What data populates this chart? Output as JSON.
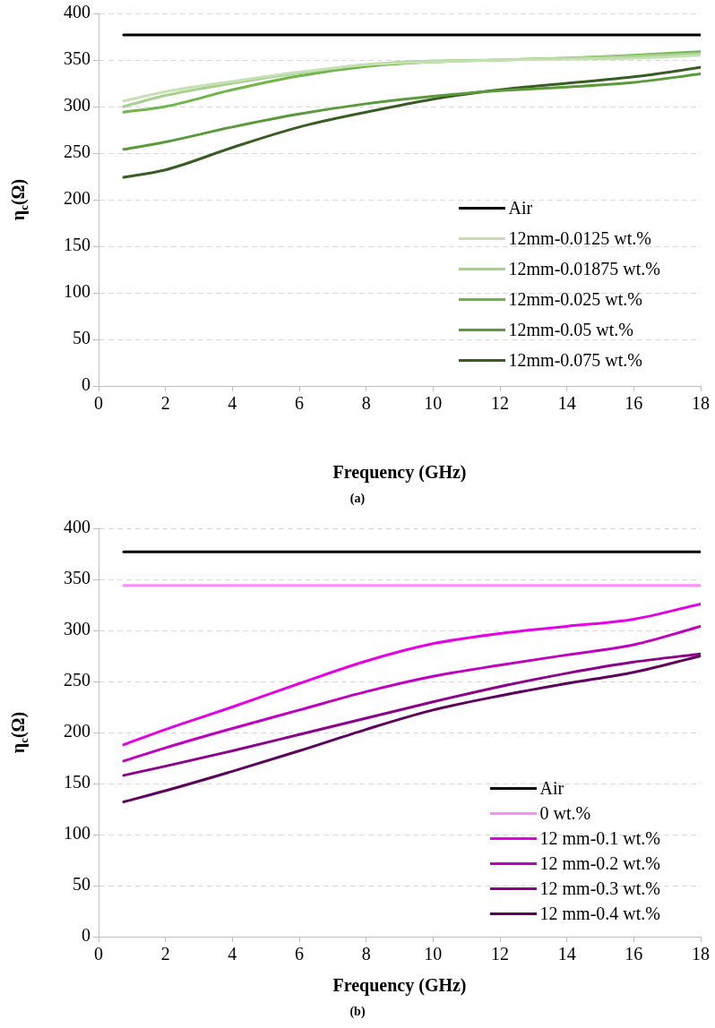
{
  "chart_data": [
    {
      "type": "line",
      "xlabel": "Frequency (GHz)",
      "ylabel": "η$_{c}$(Ω)",
      "annotations": [
        "(a)"
      ],
      "x": [
        0.75,
        2,
        4,
        6,
        8,
        10,
        12,
        14,
        16,
        18
      ],
      "xlim": [
        0,
        18
      ],
      "xticks": [
        0,
        2,
        4,
        6,
        8,
        10,
        12,
        14,
        16,
        18
      ],
      "ylim": [
        0,
        400
      ],
      "yticks": [
        0,
        50,
        100,
        150,
        200,
        250,
        300,
        350,
        400
      ],
      "grid": "y",
      "legend": "bottom right",
      "marker": "none",
      "line_style": "solid",
      "series": [
        {
          "name": "Air",
          "color": "#000000",
          "values": [
            377,
            377,
            377,
            377,
            377,
            377,
            377,
            377,
            377,
            377
          ]
        },
        {
          "name": "12mm-0.0125 wt.%",
          "color": "#c5e0b4",
          "values": [
            306,
            316,
            327,
            337,
            345,
            348,
            350,
            351,
            352,
            355
          ]
        },
        {
          "name": "12mm-0.01875 wt.%",
          "color": "#a9d18e",
          "values": [
            300,
            312,
            325,
            336,
            345,
            349,
            350,
            352,
            354,
            357
          ]
        },
        {
          "name": "12mm-0.025 wt.%",
          "color": "#70b548",
          "values": [
            294,
            300,
            318,
            333,
            343,
            348,
            350,
            352,
            355,
            359
          ]
        },
        {
          "name": "12mm-0.05 wt.%",
          "color": "#5a9a3a",
          "values": [
            254,
            262,
            278,
            292,
            303,
            311,
            317,
            321,
            326,
            335
          ]
        },
        {
          "name": "12mm-0.075 wt.%",
          "color": "#385d23",
          "values": [
            224,
            232,
            256,
            278,
            294,
            308,
            318,
            325,
            332,
            342
          ]
        }
      ]
    },
    {
      "type": "line",
      "xlabel": "Frequency (GHz)",
      "ylabel": "η$_{c}$(Ω)",
      "annotations": [
        "(b)"
      ],
      "x": [
        0.75,
        2,
        4,
        6,
        8,
        10,
        12,
        14,
        16,
        18
      ],
      "xlim": [
        0,
        18
      ],
      "xticks": [
        0,
        2,
        4,
        6,
        8,
        10,
        12,
        14,
        16,
        18
      ],
      "ylim": [
        0,
        400
      ],
      "yticks": [
        0,
        50,
        100,
        150,
        200,
        250,
        300,
        350,
        400
      ],
      "grid": "y",
      "legend": "bottom right",
      "marker": "none",
      "line_style": "solid",
      "series": [
        {
          "name": "Air",
          "color": "#000000",
          "values": [
            377,
            377,
            377,
            377,
            377,
            377,
            377,
            377,
            377,
            377
          ]
        },
        {
          "name": "0 wt.%",
          "color": "#ff8cff",
          "values": [
            344,
            344,
            344,
            344,
            344,
            344,
            344,
            344,
            344,
            344
          ]
        },
        {
          "name": "12 mm-0.1 wt.%",
          "color": "#e600e6",
          "values": [
            188,
            203,
            225,
            248,
            270,
            287,
            297,
            304,
            311,
            326
          ]
        },
        {
          "name": "12 mm-0.2 wt.%",
          "color": "#c000c0",
          "values": [
            172,
            185,
            204,
            222,
            240,
            255,
            266,
            276,
            286,
            304
          ]
        },
        {
          "name": "12 mm-0.3 wt.%",
          "color": "#8c008c",
          "values": [
            158,
            167,
            182,
            198,
            214,
            230,
            245,
            258,
            269,
            277
          ]
        },
        {
          "name": "12 mm-0.4 wt.%",
          "color": "#5c005c",
          "values": [
            132,
            143,
            162,
            182,
            203,
            222,
            236,
            248,
            259,
            275
          ]
        }
      ]
    }
  ]
}
